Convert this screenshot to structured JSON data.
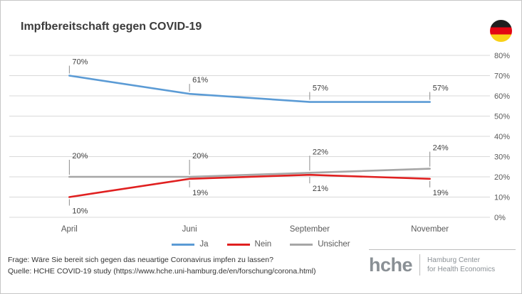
{
  "title": "Impfbereitschaft gegen COVID-19",
  "flag_icon": "german-flag",
  "chart_data": {
    "type": "line",
    "categories": [
      "April",
      "Juni",
      "September",
      "November"
    ],
    "series": [
      {
        "name": "Ja",
        "color": "#5B9BD5",
        "values": [
          70,
          61,
          57,
          57
        ],
        "label_side": "above",
        "label_offset": 16
      },
      {
        "name": "Nein",
        "color": "#E02020",
        "values": [
          10,
          19,
          21,
          19
        ],
        "label_side": "below",
        "label_offset": 14
      },
      {
        "name": "Unsicher",
        "color": "#A6A6A6",
        "values": [
          20,
          20,
          22,
          24
        ],
        "label_side": "above",
        "label_offset": 26
      }
    ],
    "ylim": [
      0,
      80
    ],
    "ytick_step": 10,
    "ytick_suffix": "%",
    "yaxis_position": "right",
    "grid": true,
    "legend_position": "bottom"
  },
  "footer": {
    "question": "Frage: Wäre Sie bereit sich gegen das neuartige Coronavirus impfen zu lassen?",
    "source": "Quelle: HCHE COVID-19 study (https://www.hche.uni-hamburg.de/en/forschung/corona.html)"
  },
  "logo": {
    "name": "hche",
    "org_line1": "Hamburg Center",
    "org_line2": "for Health Economics"
  }
}
